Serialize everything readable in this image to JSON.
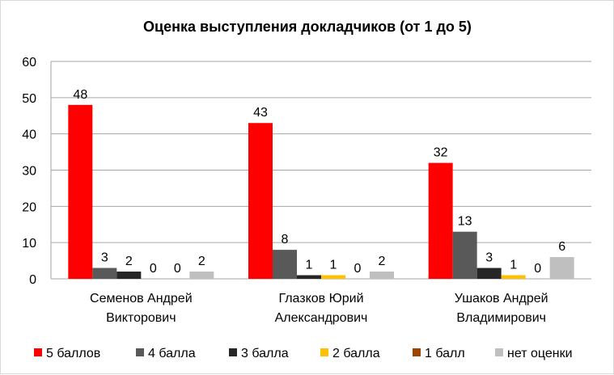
{
  "chart_data": {
    "type": "bar",
    "title": "Оценка выступления докладчиков (от 1 до 5)",
    "xlabel": "",
    "ylabel": "",
    "ylim": [
      0,
      60
    ],
    "yticks": [
      0,
      10,
      20,
      30,
      40,
      50,
      60
    ],
    "grid": true,
    "legend_position": "bottom",
    "categories": [
      [
        "Семенов Андрей",
        "Викторович"
      ],
      [
        "Глазков Юрий",
        "Александрович"
      ],
      [
        "Ушаков Андрей",
        "Владимирович"
      ]
    ],
    "series": [
      {
        "name": "5 баллов",
        "color": "#FF0000",
        "values": [
          48,
          43,
          32
        ]
      },
      {
        "name": "4 балла",
        "color": "#595959",
        "values": [
          3,
          8,
          13
        ]
      },
      {
        "name": "3 балла",
        "color": "#262626",
        "values": [
          2,
          1,
          3
        ]
      },
      {
        "name": "2 балла",
        "color": "#FFC000",
        "values": [
          0,
          1,
          1
        ]
      },
      {
        "name": "1 балл",
        "color": "#9C4500",
        "values": [
          0,
          0,
          0
        ]
      },
      {
        "name": "нет оценки",
        "color": "#BFBFBF",
        "values": [
          2,
          2,
          6
        ]
      }
    ]
  }
}
